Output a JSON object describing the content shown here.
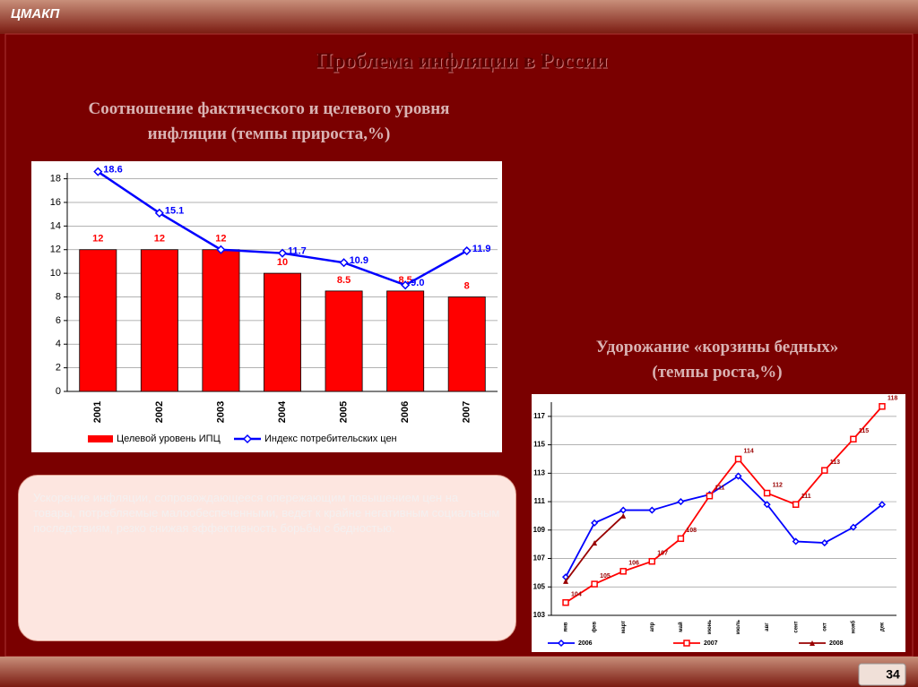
{
  "header": {
    "logo": "ЦМАКП",
    "title": "Проблема инфляции в России",
    "page": "34"
  },
  "note": "Ускорение инфляции, сопровождающееся опережающим повышением цен на товары, потребляемые малообеспеченными, ведет к крайне негативным социальным последствиям, резко снижая эффективность борьбы с бедностью.",
  "chart_data": [
    {
      "type": "bar",
      "title": [
        "Соотношение фактического и целевого уровня",
        "инфляции (темпы прироста,%)"
      ],
      "categories": [
        "2001",
        "2002",
        "2003",
        "2004",
        "2005",
        "2006",
        "2007"
      ],
      "series": [
        {
          "name": "Целевой уровень ИПЦ",
          "type": "bar",
          "color": "#ff0000",
          "values": [
            12,
            12,
            12,
            10,
            8.5,
            8.5,
            8
          ]
        },
        {
          "name": "Индекс потребительских цен",
          "type": "line",
          "marker": "diamond",
          "color": "#0000ff",
          "values": [
            18.6,
            15.1,
            12,
            11.7,
            10.9,
            9.0,
            11.9
          ],
          "value_labels": [
            "18.6",
            "15.1",
            null,
            "11.7",
            "10.9",
            "9.0",
            "11.9"
          ]
        }
      ],
      "ylim": [
        0,
        18.5
      ],
      "yticks": [
        0,
        2,
        4,
        6,
        8,
        10,
        12,
        14,
        16,
        18
      ],
      "grid": true,
      "legend": "bottom"
    },
    {
      "type": "line",
      "title": [
        "Удорожание «корзины бедных»",
        "(темпы роста,%)"
      ],
      "categories": [
        "янв",
        "фев",
        "март",
        "апр",
        "май",
        "июнь",
        "июль",
        "авг",
        "сент",
        "окт",
        "нояб",
        "дек"
      ],
      "series": [
        {
          "name": "2006",
          "type": "line",
          "marker": "diamond",
          "color": "#0000ff",
          "values": [
            105.7,
            109.5,
            110.4,
            110.4,
            111.0,
            111.5,
            112.8,
            110.8,
            108.2,
            108.1,
            109.2,
            110.8
          ]
        },
        {
          "name": "2007",
          "type": "line",
          "marker": "square",
          "color": "#ff0000",
          "values": [
            103.9,
            105.2,
            106.1,
            106.8,
            108.4,
            111.4,
            114.0,
            111.6,
            110.8,
            113.2,
            115.4,
            117.7
          ],
          "value_labels": [
            "104",
            "105",
            "106",
            "107",
            "108",
            "111",
            "114",
            "112",
            "111",
            "113",
            "115",
            "118"
          ]
        },
        {
          "name": "2008",
          "type": "line",
          "marker": "triangle",
          "color": "#990000",
          "values": [
            105.4,
            108.1,
            110.0,
            null,
            null,
            null,
            null,
            null,
            null,
            null,
            null,
            null
          ]
        }
      ],
      "ylim": [
        103,
        118
      ],
      "yticks": [
        103,
        105,
        107,
        109,
        111,
        113,
        115,
        117
      ],
      "grid": true,
      "legend": "bottom"
    }
  ]
}
